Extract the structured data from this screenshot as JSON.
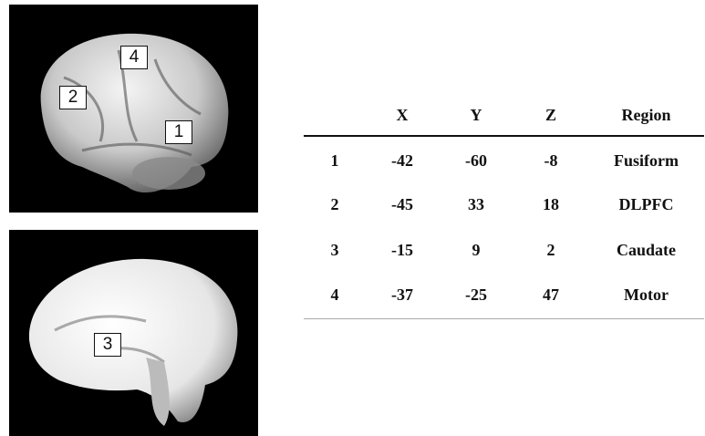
{
  "figure": {
    "panels": [
      {
        "markers": [
          "4",
          "2",
          "1"
        ]
      },
      {
        "markers": [
          "3"
        ]
      }
    ]
  },
  "table": {
    "header": [
      "X",
      "Y",
      "Z",
      "Region"
    ],
    "rows": [
      [
        1,
        -42,
        -60,
        -8,
        "Fusiform"
      ],
      [
        2,
        -45,
        33,
        18,
        "DLPFC"
      ],
      [
        3,
        -15,
        9,
        2,
        "Caudate"
      ],
      [
        4,
        -37,
        -25,
        47,
        "Motor"
      ]
    ]
  }
}
